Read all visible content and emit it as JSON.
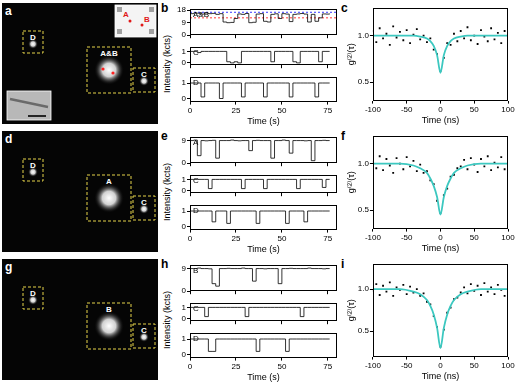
{
  "images": [
    {
      "label": "a",
      "boxes": [
        "D",
        "A&B",
        "C"
      ],
      "inset_labels": [
        "A",
        "B"
      ]
    },
    {
      "label": "d",
      "boxes": [
        "D",
        "A",
        "C"
      ]
    },
    {
      "label": "g",
      "boxes": [
        "D",
        "B",
        "C"
      ]
    }
  ],
  "chart_data": [
    {
      "label": "b",
      "type": "line",
      "line_style": "step",
      "color": "#000000",
      "xlabel": "Time (s)",
      "ylabel": "Intensity (kcts)",
      "x": [
        0,
        2,
        4,
        6,
        8,
        10,
        12,
        14,
        16,
        18,
        20,
        22,
        24,
        26,
        28,
        30,
        32,
        34,
        36,
        38,
        40,
        42,
        44,
        46,
        48,
        50,
        52,
        54,
        56,
        58,
        60,
        62,
        64,
        66,
        68,
        70,
        72,
        74,
        76
      ],
      "xlim": [
        0,
        80
      ],
      "xticks": [
        0,
        25,
        50,
        75
      ],
      "series": [
        {
          "name": "A&B",
          "ylim": [
            0,
            19
          ],
          "yticks": [
            0,
            9,
            18
          ],
          "hlines": [
            {
              "value": 16.5,
              "color": "#3a3aff"
            },
            {
              "value": 12.5,
              "color": "#ff3a3a"
            }
          ],
          "values": [
            15.5,
            16,
            15.8,
            15.2,
            16,
            15.5,
            15.7,
            15,
            15.5,
            9.5,
            9,
            9.2,
            12,
            15.3,
            15,
            15.6,
            9,
            9.3,
            15.2,
            15.5,
            10,
            9.5,
            15,
            15.4,
            12,
            15.5,
            15.2,
            9.8,
            15,
            15.3,
            15.6,
            15.2,
            9.5,
            15,
            10,
            12.5,
            15.3,
            15.2,
            15.5
          ]
        },
        {
          "name": "C",
          "ylim": [
            -0.2,
            1.4
          ],
          "yticks": [
            0,
            1
          ],
          "values": [
            1,
            1,
            0.9,
            1,
            1,
            1,
            1,
            1,
            1,
            1,
            0.1,
            0,
            0.1,
            0,
            1,
            1,
            1,
            1,
            1,
            1,
            1,
            1,
            0.1,
            1,
            1,
            1,
            1,
            1,
            0.1,
            0,
            1,
            1,
            1,
            1,
            1,
            0.1,
            1,
            1,
            1
          ]
        },
        {
          "name": "D",
          "ylim": [
            -0.2,
            1.4
          ],
          "yticks": [
            0,
            1
          ],
          "values": [
            1,
            1,
            1,
            0.1,
            1,
            1,
            1,
            1,
            0,
            1,
            1,
            1,
            1,
            1,
            0.1,
            1,
            1,
            1,
            1,
            1,
            0.1,
            1,
            1,
            1,
            1,
            1,
            1,
            0.1,
            1,
            1,
            1,
            1,
            1,
            1,
            0.1,
            1,
            1,
            1,
            1
          ]
        }
      ]
    },
    {
      "label": "c",
      "type": "scatter",
      "xlabel": "Time (ns)",
      "ylabel": "g⁽²⁾(τ)",
      "xlim": [
        -100,
        100
      ],
      "xticks": [
        -100,
        -50,
        0,
        50,
        100
      ],
      "ylim": [
        0.3,
        1.3
      ],
      "yticks": [
        0.5,
        {
          "value": 1,
          "label": "1.0"
        }
      ],
      "series": [
        {
          "type": "scatter",
          "marker": "square",
          "color": "#000000",
          "x": [
            -100,
            -95,
            -90,
            -85,
            -80,
            -75,
            -70,
            -65,
            -60,
            -55,
            -50,
            -45,
            -40,
            -35,
            -30,
            -25,
            -20,
            -15,
            -10,
            -5,
            0,
            5,
            10,
            15,
            20,
            25,
            30,
            35,
            40,
            45,
            50,
            55,
            60,
            65,
            70,
            75,
            80,
            85,
            90,
            95,
            100
          ],
          "values": [
            1.05,
            0.93,
            1.08,
            0.97,
            1.02,
            0.9,
            1.1,
            0.98,
            1.04,
            0.95,
            1.06,
            0.92,
            1.01,
            1.07,
            0.96,
            1.0,
            0.93,
            0.97,
            0.85,
            0.8,
            0.62,
            0.76,
            0.92,
            0.9,
            1.02,
            0.94,
            1.05,
            0.97,
            1.09,
            0.95,
            1.0,
            0.91,
            1.06,
            0.99,
            0.94,
            1.08,
            0.96,
            1.03,
            0.92,
            1.05,
            0.98
          ]
        },
        {
          "type": "line",
          "color": "#3cc8c0",
          "x": [
            -100,
            -80,
            -60,
            -40,
            -30,
            -20,
            -15,
            -10,
            -5,
            0,
            5,
            10,
            15,
            20,
            30,
            40,
            60,
            80,
            100
          ],
          "values": [
            1,
            1,
            1,
            1,
            0.99,
            0.97,
            0.94,
            0.89,
            0.79,
            0.6,
            0.79,
            0.89,
            0.94,
            0.97,
            0.99,
            1,
            1,
            1,
            1
          ]
        }
      ]
    },
    {
      "label": "e",
      "type": "line",
      "line_style": "step",
      "color": "#000000",
      "xlabel": "Time (s)",
      "ylabel": "Intensity (kcts)",
      "x": [
        0,
        2,
        4,
        6,
        8,
        10,
        12,
        14,
        16,
        18,
        20,
        22,
        24,
        26,
        28,
        30,
        32,
        34,
        36,
        38,
        40,
        42,
        44,
        46,
        48,
        50,
        52,
        54,
        56,
        58,
        60,
        62,
        64,
        66,
        68,
        70,
        72,
        74,
        76
      ],
      "xlim": [
        0,
        80
      ],
      "xticks": [
        0,
        25,
        50,
        75
      ],
      "series": [
        {
          "name": "A",
          "ylim": [
            0,
            10.5
          ],
          "yticks": [
            0,
            9
          ],
          "values": [
            9,
            9.2,
            3,
            9,
            8.9,
            9,
            9.1,
            2,
            9,
            9,
            9,
            9.2,
            9,
            8.9,
            9,
            9,
            5,
            9,
            9.1,
            9,
            9,
            9,
            2,
            9,
            9,
            9.2,
            9,
            4,
            9,
            9,
            9,
            8.9,
            9,
            1,
            9,
            9,
            9.1,
            9,
            9
          ]
        },
        {
          "name": "C",
          "ylim": [
            -0.2,
            1.4
          ],
          "yticks": [
            0,
            1
          ],
          "values": [
            1,
            1,
            1,
            1,
            1,
            0.2,
            1,
            1,
            1,
            1,
            1,
            1,
            1,
            1,
            0.2,
            1,
            1,
            1,
            1,
            1,
            0.2,
            1,
            1,
            1,
            1,
            1,
            1,
            1,
            1,
            0.2,
            1,
            1,
            1,
            1,
            1,
            1,
            0.3,
            1,
            1
          ]
        },
        {
          "name": "D",
          "ylim": [
            -0.2,
            1.4
          ],
          "yticks": [
            0,
            1
          ],
          "values": [
            1,
            1,
            1,
            1,
            1,
            1,
            0.3,
            1,
            1,
            1,
            0.2,
            1,
            1,
            1,
            1,
            1,
            1,
            1,
            0.2,
            1,
            1,
            1,
            1,
            1,
            1,
            1,
            0.2,
            1,
            1,
            1,
            1,
            0.3,
            1,
            1,
            1,
            1,
            1,
            1,
            1
          ]
        }
      ]
    },
    {
      "label": "f",
      "type": "scatter",
      "xlabel": "Time (ns)",
      "ylabel": "g⁽²⁾(τ)",
      "xlim": [
        -100,
        100
      ],
      "xticks": [
        -100,
        -50,
        0,
        50,
        100
      ],
      "ylim": [
        0.3,
        1.3
      ],
      "yticks": [
        0.5,
        {
          "value": 1,
          "label": "1.0"
        }
      ],
      "series": [
        {
          "type": "scatter",
          "marker": "square",
          "color": "#000000",
          "x": [
            -100,
            -95,
            -90,
            -85,
            -80,
            -75,
            -70,
            -65,
            -60,
            -55,
            -50,
            -45,
            -40,
            -35,
            -30,
            -25,
            -20,
            -15,
            -10,
            -5,
            0,
            5,
            10,
            15,
            20,
            25,
            30,
            35,
            40,
            45,
            50,
            55,
            60,
            65,
            70,
            75,
            80,
            85,
            90,
            95,
            100
          ],
          "values": [
            1.02,
            0.95,
            1.08,
            0.93,
            1.05,
            0.98,
            0.9,
            1.06,
            1.0,
            0.94,
            1.07,
            0.97,
            1.03,
            0.92,
            0.99,
            0.9,
            0.92,
            0.82,
            0.78,
            0.6,
            0.47,
            0.66,
            0.73,
            0.86,
            0.88,
            0.95,
            0.97,
            1.04,
            0.94,
            1.06,
            0.99,
            0.91,
            1.05,
            0.97,
            1.08,
            0.93,
            1.01,
            0.96,
            1.07,
            0.94,
            1.03
          ]
        },
        {
          "type": "line",
          "color": "#3cc8c0",
          "x": [
            -100,
            -80,
            -60,
            -40,
            -30,
            -20,
            -15,
            -10,
            -5,
            0,
            5,
            10,
            15,
            20,
            30,
            40,
            60,
            80,
            100
          ],
          "values": [
            1,
            1,
            1,
            0.98,
            0.95,
            0.9,
            0.84,
            0.76,
            0.64,
            0.45,
            0.64,
            0.76,
            0.84,
            0.9,
            0.95,
            0.98,
            1,
            1,
            1
          ]
        }
      ]
    },
    {
      "label": "h",
      "type": "line",
      "line_style": "step",
      "color": "#000000",
      "xlabel": "Time (s)",
      "ylabel": "Intensity (kcts)",
      "x": [
        0,
        2,
        4,
        6,
        8,
        10,
        12,
        14,
        16,
        18,
        20,
        22,
        24,
        26,
        28,
        30,
        32,
        34,
        36,
        38,
        40,
        42,
        44,
        46,
        48,
        50,
        52,
        54,
        56,
        58,
        60,
        62,
        64,
        66,
        68,
        70,
        72,
        74,
        76
      ],
      "xlim": [
        0,
        80
      ],
      "xticks": [
        0,
        25,
        50,
        75
      ],
      "series": [
        {
          "name": "B",
          "ylim": [
            0,
            10.5
          ],
          "yticks": [
            0,
            9
          ],
          "values": [
            9,
            9,
            9.2,
            9,
            9,
            8.9,
            3,
            2,
            9,
            9,
            9.1,
            9,
            9,
            9,
            9.2,
            9,
            9,
            4,
            9,
            9,
            8.9,
            9,
            9,
            9,
            3,
            9,
            9,
            9.1,
            9,
            9,
            9,
            9,
            9.2,
            9,
            9,
            9,
            8.9,
            9,
            9
          ]
        },
        {
          "name": "C",
          "ylim": [
            -0.2,
            1.4
          ],
          "yticks": [
            0,
            1
          ],
          "values": [
            1,
            1,
            1,
            1,
            0.2,
            1,
            1,
            1,
            1,
            1,
            1,
            1,
            1,
            1,
            1,
            0.2,
            1,
            1,
            1,
            1,
            1,
            1,
            1,
            1,
            1,
            1,
            1,
            1,
            1,
            1,
            0.2,
            1,
            1,
            1,
            1,
            1,
            1,
            1,
            1
          ]
        },
        {
          "name": "D",
          "ylim": [
            -0.2,
            1.4
          ],
          "yticks": [
            0,
            1
          ],
          "values": [
            1,
            1,
            1,
            1,
            1,
            0.2,
            0.2,
            1,
            1,
            1,
            1,
            1,
            1,
            1,
            1,
            1,
            1,
            1,
            0.2,
            1,
            1,
            1,
            1,
            1,
            1,
            1,
            0.2,
            1,
            1,
            1,
            1,
            1,
            1,
            1,
            1,
            1,
            1,
            1,
            1
          ]
        }
      ]
    },
    {
      "label": "i",
      "type": "scatter",
      "xlabel": "Time (ns)",
      "ylabel": "g⁽²⁾(τ)",
      "xlim": [
        -100,
        100
      ],
      "xticks": [
        -100,
        -50,
        0,
        50,
        100
      ],
      "ylim": [
        0.2,
        1.3
      ],
      "yticks": [
        0.5,
        {
          "value": 1,
          "label": "1.0"
        }
      ],
      "series": [
        {
          "type": "scatter",
          "marker": "square",
          "color": "#000000",
          "x": [
            -100,
            -95,
            -90,
            -85,
            -80,
            -75,
            -70,
            -65,
            -60,
            -55,
            -50,
            -45,
            -40,
            -35,
            -30,
            -25,
            -20,
            -15,
            -10,
            -5,
            0,
            5,
            10,
            15,
            20,
            25,
            30,
            35,
            40,
            45,
            50,
            55,
            60,
            65,
            70,
            75,
            80,
            85,
            90,
            95,
            100
          ],
          "values": [
            0.98,
            1.06,
            0.93,
            1.04,
            0.97,
            1.08,
            0.92,
            1.02,
            0.99,
            1.05,
            0.94,
            1.03,
            0.96,
            1.0,
            0.92,
            0.95,
            0.85,
            0.82,
            0.68,
            0.55,
            0.32,
            0.52,
            0.72,
            0.78,
            0.88,
            0.9,
            0.96,
            1.02,
            0.95,
            1.06,
            0.98,
            1.04,
            0.93,
            1.07,
            0.97,
            1.02,
            0.94,
            1.05,
            0.99,
            0.92,
            1.04
          ]
        },
        {
          "type": "line",
          "color": "#3cc8c0",
          "x": [
            -100,
            -80,
            -60,
            -40,
            -30,
            -20,
            -15,
            -10,
            -5,
            0,
            5,
            10,
            15,
            20,
            30,
            40,
            60,
            80,
            100
          ],
          "values": [
            1,
            1,
            1,
            0.97,
            0.94,
            0.87,
            0.8,
            0.7,
            0.54,
            0.3,
            0.54,
            0.7,
            0.8,
            0.87,
            0.94,
            0.97,
            1,
            1,
            1
          ]
        }
      ]
    }
  ]
}
